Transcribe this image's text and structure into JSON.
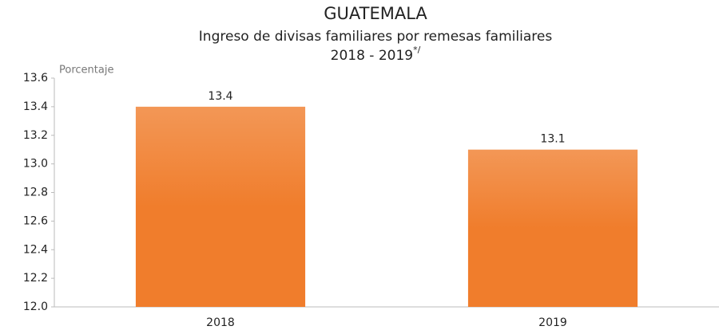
{
  "chart_data": {
    "type": "bar",
    "title": "GUATEMALA",
    "subtitle": "Ingreso de divisas familiares por remesas familiares",
    "period": "2018 - 2019",
    "period_note": "*/",
    "y_label": "Porcentaje",
    "categories": [
      "2018",
      "2019"
    ],
    "values": [
      13.4,
      13.1
    ],
    "color": "#f07d2c",
    "ylim": [
      12,
      13.6
    ],
    "yticks": [
      {
        "value": 12,
        "label": "12.0"
      },
      12.2,
      12.4,
      12.6,
      12.8,
      {
        "value": 13,
        "label": "13.0"
      },
      13.2,
      13.4,
      13.6
    ],
    "grid": false
  }
}
